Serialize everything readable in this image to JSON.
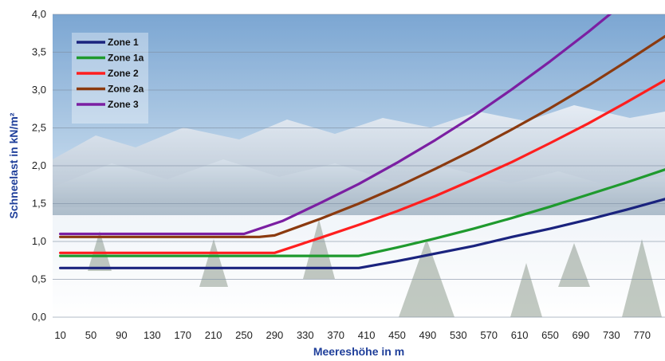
{
  "chart_data": {
    "type": "line",
    "title": "",
    "xlabel": "Meereshöhe in m",
    "ylabel": "Schneelast in kN/m²",
    "x_ticks": [
      10,
      50,
      90,
      130,
      170,
      210,
      250,
      290,
      330,
      370,
      410,
      450,
      490,
      530,
      570,
      610,
      650,
      690,
      730,
      770
    ],
    "xlim": [
      0,
      800
    ],
    "ylim": [
      0,
      4.0
    ],
    "y_ticks": [
      "0,0",
      "0,5",
      "1,0",
      "1,5",
      "2,0",
      "2,5",
      "3,0",
      "3,5",
      "4,0"
    ],
    "y_tick_values": [
      0,
      0.5,
      1.0,
      1.5,
      2.0,
      2.5,
      3.0,
      3.5,
      4.0
    ],
    "grid": true,
    "legend_position": "top-left",
    "background": "photo of snowy mountain landscape",
    "series": [
      {
        "name": "Zone 1",
        "color": "#1a237e",
        "x": [
          10,
          400,
          450,
          500,
          550,
          600,
          650,
          700,
          750,
          800
        ],
        "y": [
          0.65,
          0.65,
          0.74,
          0.84,
          0.94,
          1.06,
          1.17,
          1.29,
          1.42,
          1.56
        ]
      },
      {
        "name": "Zone 1a",
        "color": "#1f9a2e",
        "x": [
          10,
          400,
          450,
          500,
          550,
          600,
          650,
          700,
          750,
          800
        ],
        "y": [
          0.81,
          0.81,
          0.92,
          1.04,
          1.17,
          1.31,
          1.46,
          1.62,
          1.78,
          1.95
        ]
      },
      {
        "name": "Zone 2",
        "color": "#ff1f1f",
        "x": [
          10,
          290,
          350,
          400,
          450,
          500,
          550,
          600,
          650,
          700,
          750,
          800
        ],
        "y": [
          0.85,
          0.85,
          1.05,
          1.22,
          1.4,
          1.6,
          1.82,
          2.05,
          2.3,
          2.56,
          2.84,
          3.13
        ]
      },
      {
        "name": "Zone 2a",
        "color": "#8b3a0f",
        "x": [
          10,
          270,
          290,
          350,
          400,
          450,
          500,
          550,
          600,
          650,
          700,
          750,
          800
        ],
        "y": [
          1.06,
          1.06,
          1.08,
          1.3,
          1.5,
          1.72,
          1.96,
          2.21,
          2.48,
          2.76,
          3.06,
          3.38,
          3.71
        ]
      },
      {
        "name": "Zone 3",
        "color": "#7b1fa2",
        "x": [
          10,
          250,
          300,
          350,
          400,
          450,
          500,
          550,
          600,
          650,
          700,
          740
        ],
        "y": [
          1.1,
          1.1,
          1.27,
          1.51,
          1.76,
          2.04,
          2.34,
          2.66,
          3.01,
          3.38,
          3.77,
          4.1
        ]
      }
    ]
  }
}
